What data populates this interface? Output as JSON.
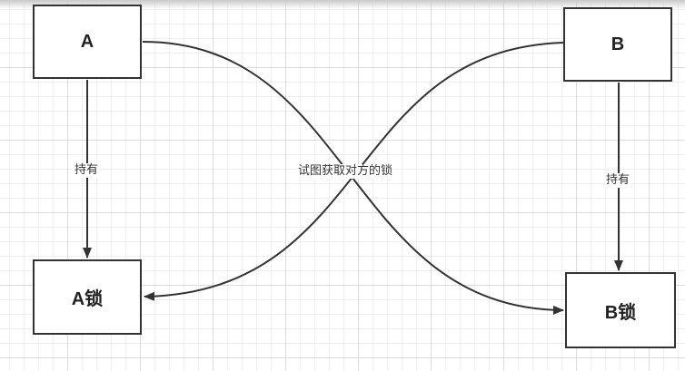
{
  "nodes": {
    "a": "A",
    "b": "B",
    "a_lock": "A锁",
    "b_lock": "B锁"
  },
  "edges": {
    "a_to_a_lock": "持有",
    "b_to_b_lock": "持有",
    "cross": "试图获取对方的锁"
  }
}
